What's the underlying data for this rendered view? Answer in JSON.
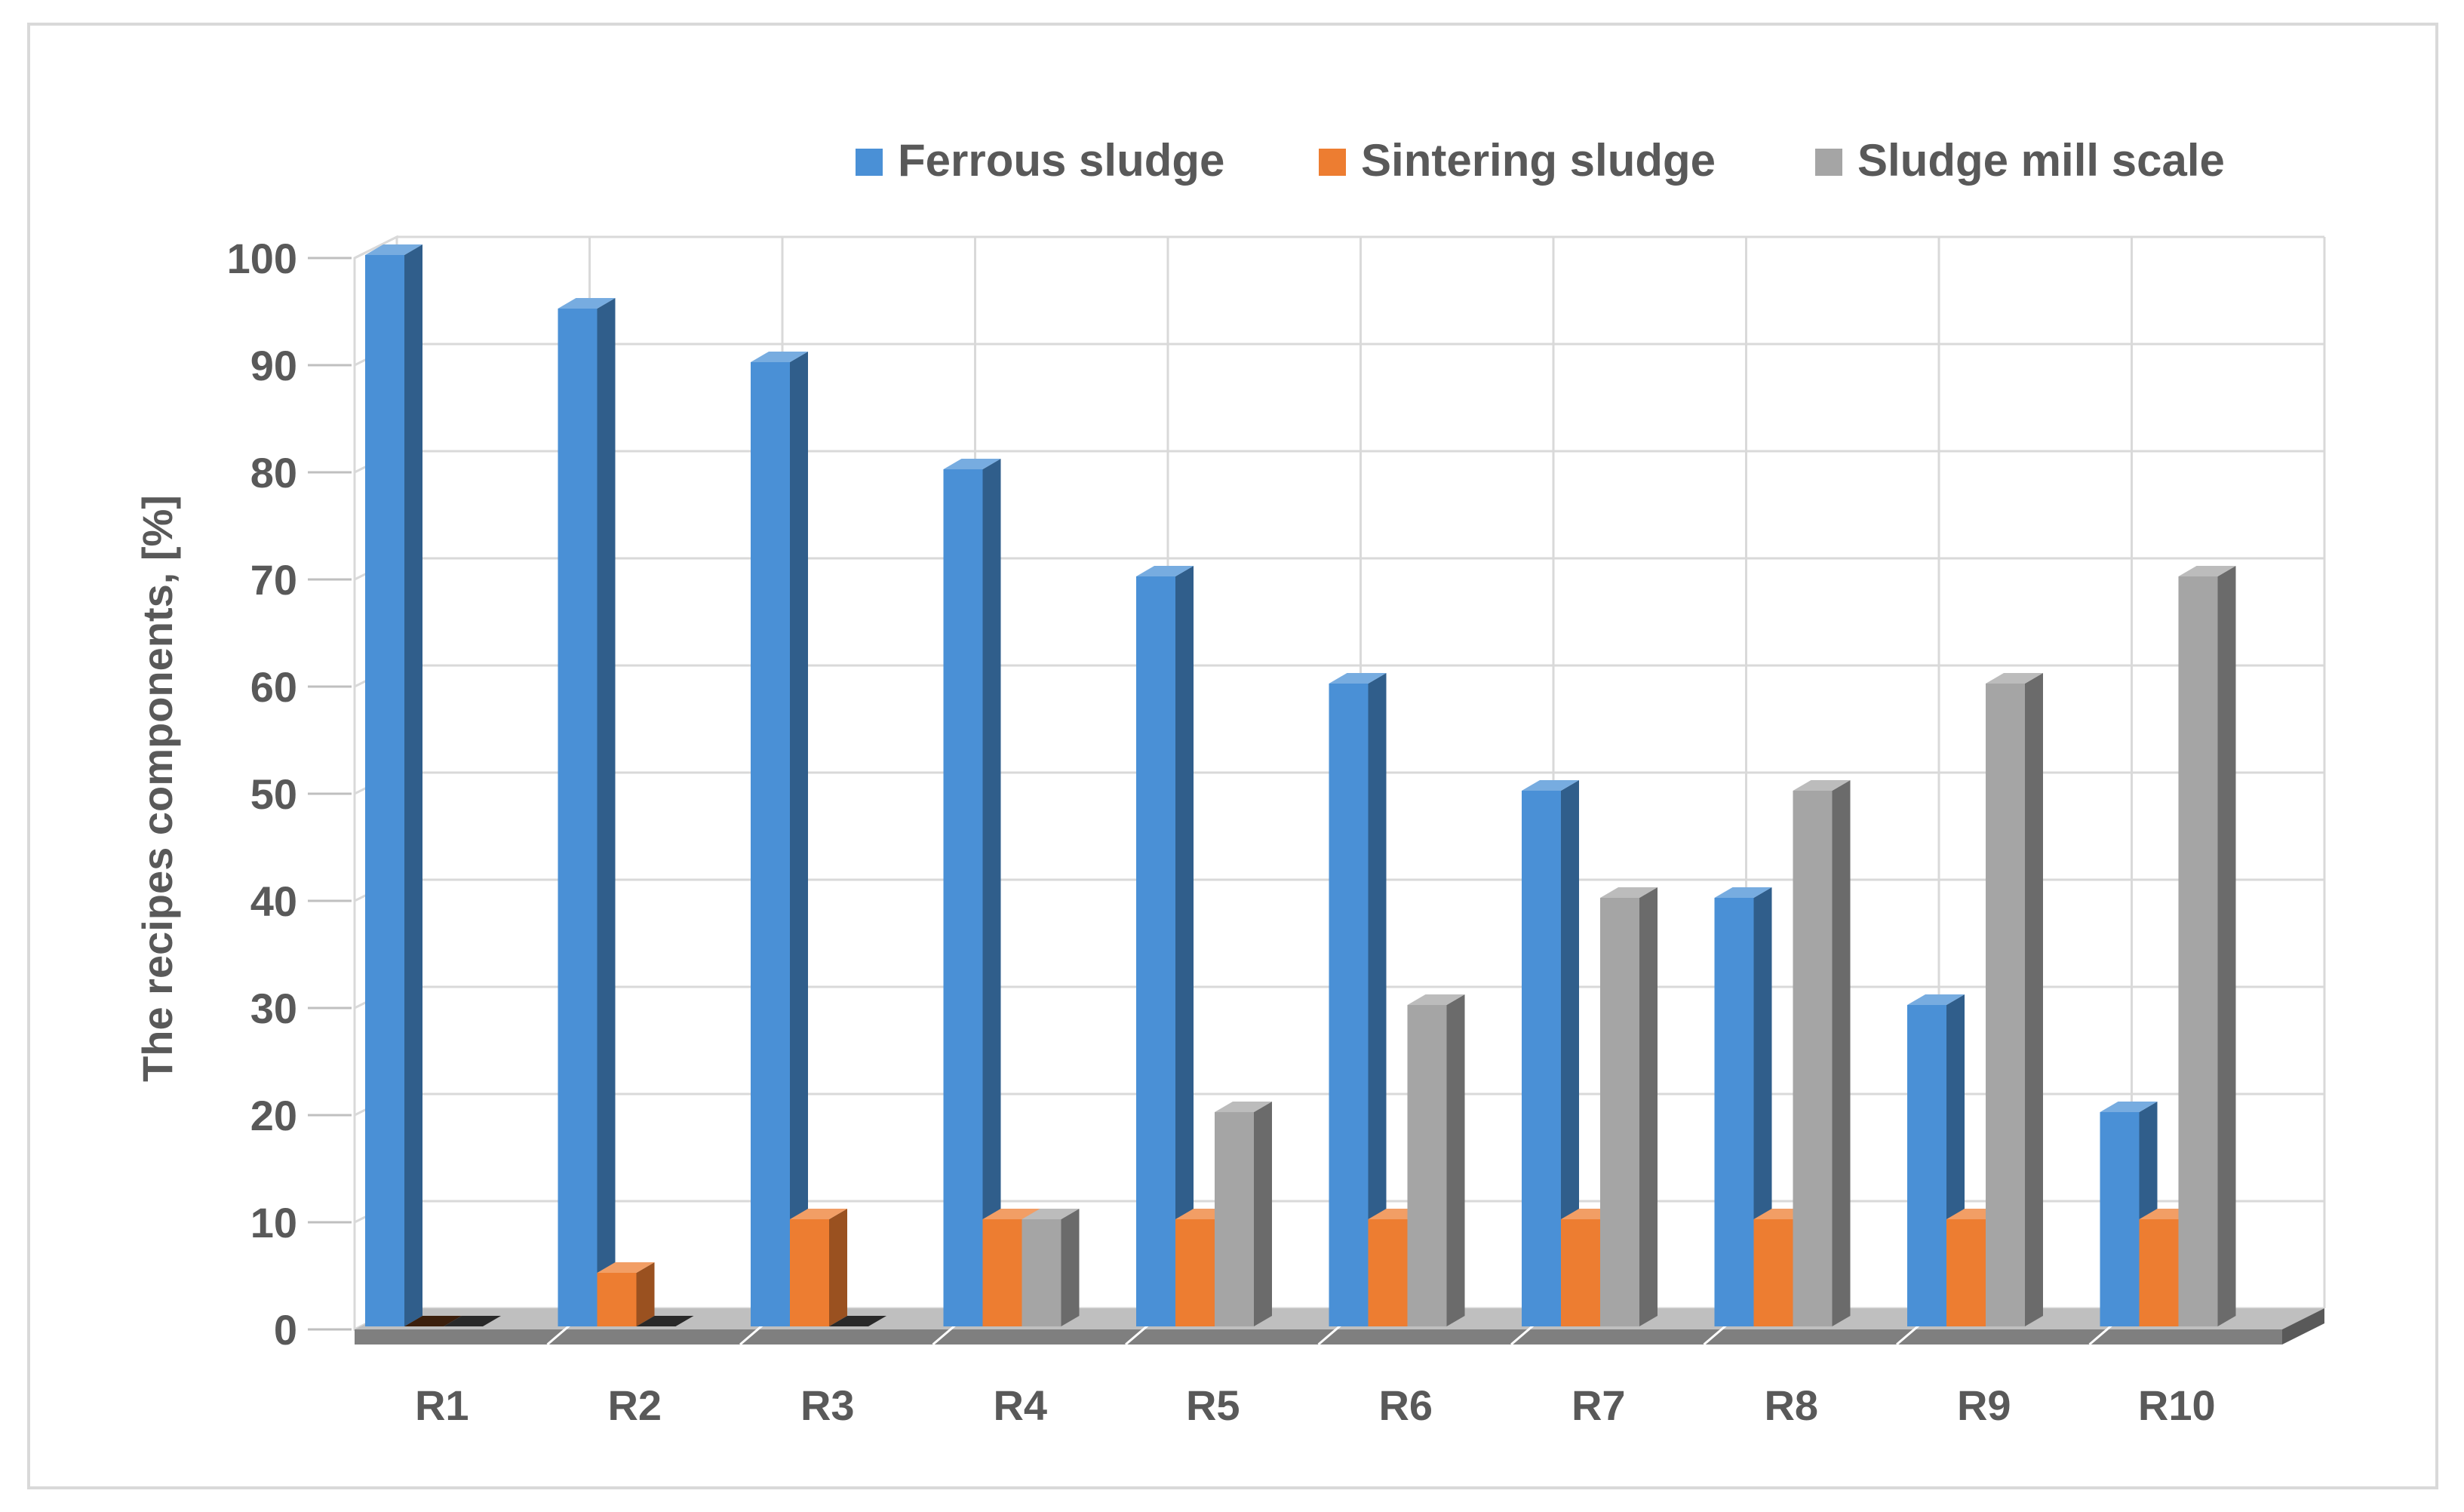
{
  "chart_data": {
    "type": "bar",
    "categories": [
      "R1",
      "R2",
      "R3",
      "R4",
      "R5",
      "R6",
      "R7",
      "R8",
      "R9",
      "R10"
    ],
    "series": [
      {
        "name": "Ferrous sludge",
        "color": "#4a90d6",
        "values": [
          100,
          95,
          90,
          80,
          70,
          60,
          50,
          40,
          30,
          20
        ]
      },
      {
        "name": "Sintering sludge",
        "color": "#ed7d31",
        "values": [
          0,
          5,
          10,
          10,
          10,
          10,
          10,
          10,
          10,
          10
        ]
      },
      {
        "name": "Sludge mill scale",
        "color": "#a5a5a5",
        "values": [
          0,
          0,
          0,
          10,
          20,
          30,
          40,
          50,
          60,
          70
        ]
      }
    ],
    "ylabel": "The recipes components, [%]",
    "xlabel": "",
    "ylim": [
      0,
      100
    ],
    "yticks": [
      0,
      10,
      20,
      30,
      40,
      50,
      60,
      70,
      80,
      90,
      100
    ],
    "grid": true,
    "legend": "top-right",
    "style": "3d-clustered-column"
  }
}
